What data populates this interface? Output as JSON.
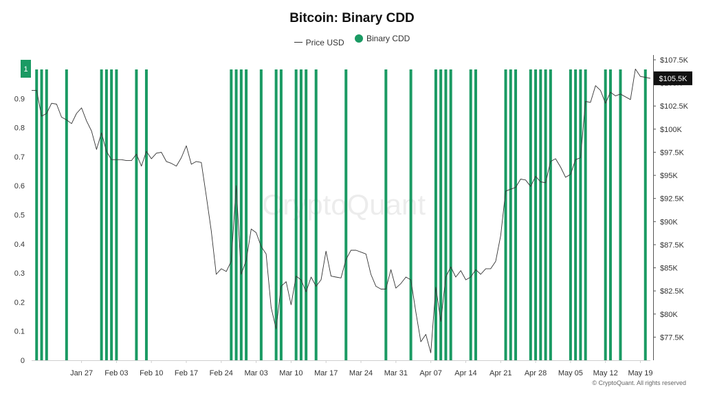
{
  "title": "Bitcoin: Binary CDD",
  "legend": [
    {
      "label": "Price USD",
      "shape": "line",
      "color": "#333333"
    },
    {
      "label": "Binary CDD",
      "shape": "circle",
      "color": "#1a9a63"
    }
  ],
  "watermark": "CryptoQuant",
  "copyright": "© CryptoQuant. All rights reserved",
  "flags": {
    "left_value": "1",
    "right_value": "$105.5K"
  },
  "colors": {
    "cdd_bar": "#1a9a63",
    "price_line": "#333333",
    "price_flag": "#111111",
    "cdd_flag": "#1a9a63"
  },
  "chart_data": {
    "type": "bar+line",
    "title": "Bitcoin: Binary CDD",
    "x_axis": {
      "start": "2025-01-17",
      "end": "2025-05-21",
      "ticks": [
        "Jan 27",
        "Feb 03",
        "Feb 10",
        "Feb 17",
        "Feb 24",
        "Mar 03",
        "Mar 10",
        "Mar 17",
        "Mar 24",
        "Mar 31",
        "Apr 07",
        "Apr 14",
        "Apr 21",
        "Apr 28",
        "May 05",
        "May 12",
        "May 19"
      ]
    },
    "y_left": {
      "label": "",
      "range": [
        0,
        1
      ],
      "ticks": [
        "0",
        "0.1",
        "0.2",
        "0.3",
        "0.4",
        "0.5",
        "0.6",
        "0.7",
        "0.8",
        "0.9"
      ]
    },
    "y_right": {
      "label": "",
      "range": [
        75000,
        107500
      ],
      "ticks": [
        "$77.5K",
        "$80K",
        "$82.5K",
        "$85K",
        "$87.5K",
        "$90K",
        "$92.5K",
        "$95K",
        "$97.5K",
        "$100K",
        "$102.5K",
        "$105K",
        "$107.5K"
      ]
    },
    "series": [
      {
        "name": "Binary CDD",
        "type": "bar",
        "color": "#1a9a63",
        "dates_value_1": [
          "2025-01-18",
          "2025-01-19",
          "2025-01-20",
          "2025-01-24",
          "2025-01-31",
          "2025-02-01",
          "2025-02-02",
          "2025-02-03",
          "2025-02-07",
          "2025-02-09",
          "2025-02-26",
          "2025-02-27",
          "2025-02-28",
          "2025-03-01",
          "2025-03-04",
          "2025-03-07",
          "2025-03-08",
          "2025-03-11",
          "2025-03-12",
          "2025-03-13",
          "2025-03-15",
          "2025-03-21",
          "2025-03-29",
          "2025-04-03",
          "2025-04-08",
          "2025-04-09",
          "2025-04-10",
          "2025-04-11",
          "2025-04-15",
          "2025-04-16",
          "2025-04-22",
          "2025-04-23",
          "2025-04-24",
          "2025-04-27",
          "2025-04-28",
          "2025-04-29",
          "2025-04-30",
          "2025-05-01",
          "2025-05-05",
          "2025-05-06",
          "2025-05-07",
          "2025-05-08",
          "2025-05-12",
          "2025-05-13",
          "2025-05-15",
          "2025-05-20"
        ]
      },
      {
        "name": "Price USD",
        "type": "line",
        "color": "#333333",
        "points": [
          [
            "2025-01-17",
            104200
          ],
          [
            "2025-01-18",
            104200
          ],
          [
            "2025-01-19",
            101400
          ],
          [
            "2025-01-20",
            101700
          ],
          [
            "2025-01-21",
            102800
          ],
          [
            "2025-01-22",
            102700
          ],
          [
            "2025-01-23",
            101300
          ],
          [
            "2025-01-24",
            101000
          ],
          [
            "2025-01-25",
            100600
          ],
          [
            "2025-01-26",
            101700
          ],
          [
            "2025-01-27",
            102300
          ],
          [
            "2025-01-28",
            100900
          ],
          [
            "2025-01-29",
            99800
          ],
          [
            "2025-01-30",
            97800
          ],
          [
            "2025-01-31",
            99600
          ],
          [
            "2025-02-01",
            97600
          ],
          [
            "2025-02-02",
            96700
          ],
          [
            "2025-02-03",
            96700
          ],
          [
            "2025-02-04",
            96700
          ],
          [
            "2025-02-05",
            96600
          ],
          [
            "2025-02-06",
            96600
          ],
          [
            "2025-02-07",
            97300
          ],
          [
            "2025-02-08",
            96000
          ],
          [
            "2025-02-09",
            97600
          ],
          [
            "2025-02-10",
            96800
          ],
          [
            "2025-02-11",
            97400
          ],
          [
            "2025-02-12",
            97500
          ],
          [
            "2025-02-13",
            96500
          ],
          [
            "2025-02-14",
            96300
          ],
          [
            "2025-02-15",
            96000
          ],
          [
            "2025-02-16",
            96900
          ],
          [
            "2025-02-17",
            98200
          ],
          [
            "2025-02-18",
            96200
          ],
          [
            "2025-02-19",
            96500
          ],
          [
            "2025-02-20",
            96400
          ],
          [
            "2025-02-21",
            92800
          ],
          [
            "2025-02-22",
            89000
          ],
          [
            "2025-02-23",
            84300
          ],
          [
            "2025-02-24",
            84900
          ],
          [
            "2025-02-25",
            84600
          ],
          [
            "2025-02-26",
            85700
          ],
          [
            "2025-02-27",
            93900
          ],
          [
            "2025-02-28",
            84300
          ],
          [
            "2025-03-01",
            85800
          ],
          [
            "2025-03-02",
            89200
          ],
          [
            "2025-03-03",
            88800
          ],
          [
            "2025-03-04",
            87300
          ],
          [
            "2025-03-05",
            86500
          ],
          [
            "2025-03-06",
            80700
          ],
          [
            "2025-03-07",
            78400
          ],
          [
            "2025-03-08",
            83000
          ],
          [
            "2025-03-09",
            83500
          ],
          [
            "2025-03-10",
            81000
          ],
          [
            "2025-03-11",
            84100
          ],
          [
            "2025-03-12",
            83700
          ],
          [
            "2025-03-13",
            82400
          ],
          [
            "2025-03-14",
            84000
          ],
          [
            "2025-03-15",
            83000
          ],
          [
            "2025-03-16",
            83700
          ],
          [
            "2025-03-17",
            86800
          ],
          [
            "2025-03-18",
            84100
          ],
          [
            "2025-03-19",
            84000
          ],
          [
            "2025-03-20",
            83900
          ],
          [
            "2025-03-21",
            85900
          ],
          [
            "2025-03-22",
            86900
          ],
          [
            "2025-03-23",
            86900
          ],
          [
            "2025-03-24",
            86700
          ],
          [
            "2025-03-25",
            86500
          ],
          [
            "2025-03-26",
            84300
          ],
          [
            "2025-03-27",
            83000
          ],
          [
            "2025-03-28",
            82700
          ],
          [
            "2025-03-29",
            82700
          ],
          [
            "2025-03-30",
            84800
          ],
          [
            "2025-03-31",
            82800
          ],
          [
            "2025-04-01",
            83300
          ],
          [
            "2025-04-02",
            84000
          ],
          [
            "2025-04-03",
            83700
          ],
          [
            "2025-04-04",
            80200
          ],
          [
            "2025-04-05",
            77000
          ],
          [
            "2025-04-06",
            77800
          ],
          [
            "2025-04-07",
            75800
          ],
          [
            "2025-04-08",
            82900
          ],
          [
            "2025-04-09",
            79200
          ],
          [
            "2025-04-10",
            84000
          ],
          [
            "2025-04-11",
            85100
          ],
          [
            "2025-04-12",
            84000
          ],
          [
            "2025-04-13",
            84700
          ],
          [
            "2025-04-14",
            83700
          ],
          [
            "2025-04-15",
            84000
          ],
          [
            "2025-04-16",
            84800
          ],
          [
            "2025-04-17",
            84300
          ],
          [
            "2025-04-18",
            84900
          ],
          [
            "2025-04-19",
            84900
          ],
          [
            "2025-04-20",
            85700
          ],
          [
            "2025-04-21",
            88500
          ],
          [
            "2025-04-22",
            93300
          ],
          [
            "2025-04-23",
            93500
          ],
          [
            "2025-04-24",
            93700
          ],
          [
            "2025-04-25",
            94600
          ],
          [
            "2025-04-26",
            94500
          ],
          [
            "2025-04-27",
            93800
          ],
          [
            "2025-04-28",
            94900
          ],
          [
            "2025-04-29",
            94300
          ],
          [
            "2025-04-30",
            94200
          ],
          [
            "2025-05-01",
            96500
          ],
          [
            "2025-05-02",
            96800
          ],
          [
            "2025-05-03",
            95900
          ],
          [
            "2025-05-04",
            94800
          ],
          [
            "2025-05-05",
            95100
          ],
          [
            "2025-05-06",
            96700
          ],
          [
            "2025-05-07",
            96900
          ],
          [
            "2025-05-08",
            103000
          ],
          [
            "2025-05-09",
            102900
          ],
          [
            "2025-05-10",
            104700
          ],
          [
            "2025-05-11",
            104200
          ],
          [
            "2025-05-12",
            102800
          ],
          [
            "2025-05-13",
            104000
          ],
          [
            "2025-05-14",
            103600
          ],
          [
            "2025-05-15",
            103800
          ],
          [
            "2025-05-16",
            103500
          ],
          [
            "2025-05-17",
            103200
          ],
          [
            "2025-05-18",
            106500
          ],
          [
            "2025-05-19",
            105700
          ],
          [
            "2025-05-20",
            105600
          ],
          [
            "2025-05-21",
            105500
          ]
        ]
      }
    ],
    "legend_position": "top-center",
    "grid": false
  }
}
